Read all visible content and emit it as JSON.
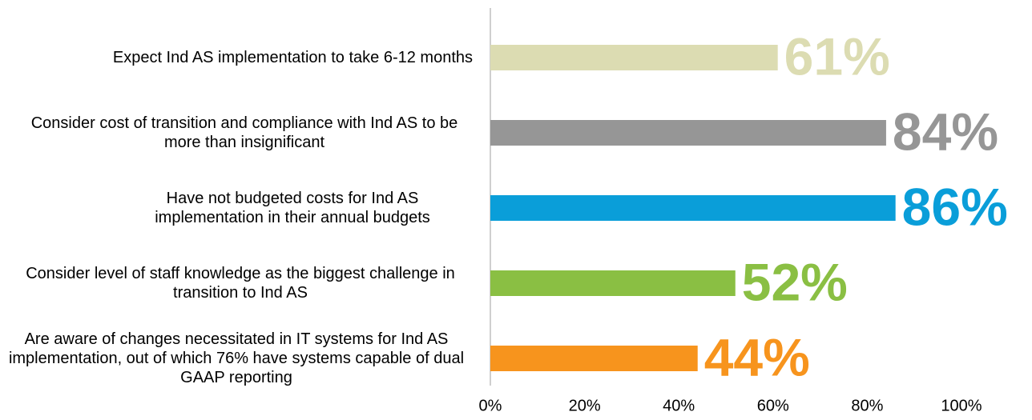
{
  "chart_data": {
    "type": "bar",
    "orientation": "horizontal",
    "categories": [
      "Expect Ind AS implementation to take 6-12 months",
      "Consider cost of transition and compliance with Ind AS to be more than insignificant",
      "Have not budgeted costs for Ind AS implementation in their annual budgets",
      "Consider level of staff knowledge as the biggest challenge in transition to Ind AS",
      "Are aware of changes necessitated in IT systems for Ind AS implementation, out of which 76% have systems capable of dual GAAP reporting"
    ],
    "values": [
      61,
      84,
      86,
      52,
      44
    ],
    "value_labels": [
      "61%",
      "84%",
      "86%",
      "52%",
      "44%"
    ],
    "colors": [
      "#dcdcb2",
      "#969696",
      "#0a9ed9",
      "#8abf43",
      "#f7941d"
    ],
    "xlim": [
      0,
      100
    ],
    "xticks": [
      {
        "value": 0,
        "label": "0%"
      },
      {
        "value": 20,
        "label": "20%"
      },
      {
        "value": 40,
        "label": "40%"
      },
      {
        "value": 60,
        "label": "60%"
      },
      {
        "value": 80,
        "label": "80%"
      },
      {
        "value": 100,
        "label": "100%"
      }
    ],
    "grid": false
  }
}
